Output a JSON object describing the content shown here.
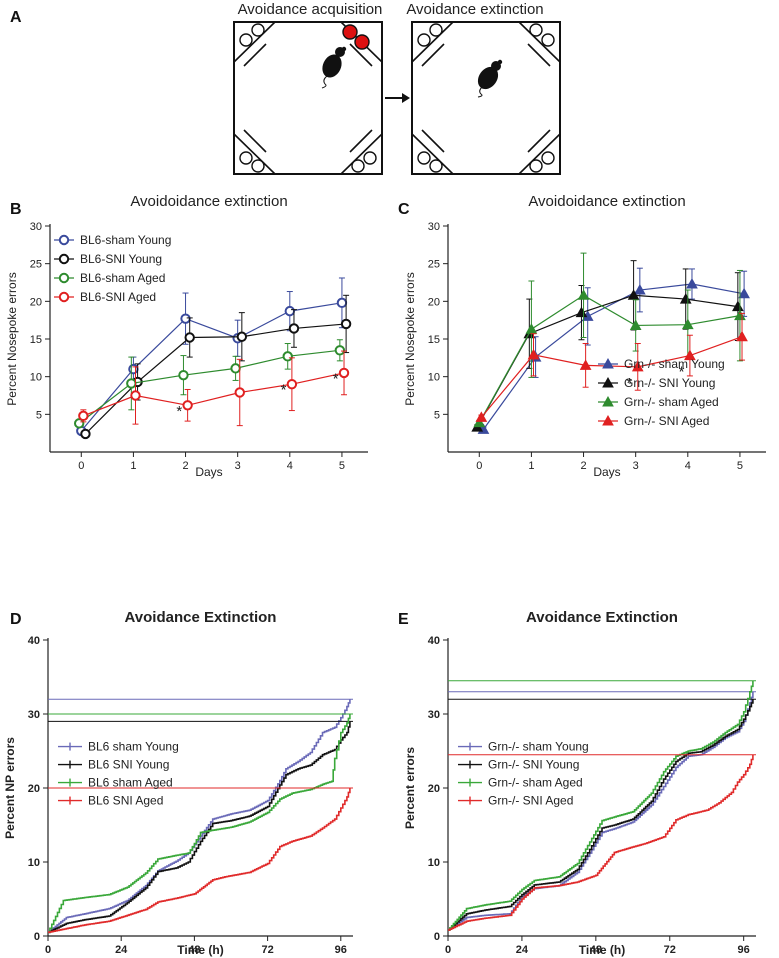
{
  "panel_labels": {
    "a": "A",
    "b": "B",
    "c": "C",
    "d": "D",
    "e": "E"
  },
  "schematic": {
    "left_title": "Avoidance acquisition",
    "right_title": "Avoidance extinction"
  },
  "colors": {
    "blue": "#3a4a9c",
    "black": "#111111",
    "green": "#2e8b2e",
    "red": "#e02020",
    "blue_step": "#6a6ab8",
    "green_step": "#3aa83a",
    "red_step": "#e02a2a"
  },
  "chart_data": [
    {
      "id": "B",
      "type": "line",
      "title": "Avoidoidance extinction",
      "xlabel": "Days",
      "ylabel": "Percent Nosepoke errors",
      "xlim": [
        -0.6,
        5.5
      ],
      "ylim": [
        0,
        30
      ],
      "xticks": [
        0,
        1,
        2,
        3,
        4,
        5
      ],
      "yticks": [
        5,
        10,
        15,
        20,
        25,
        30
      ],
      "marker": "circle",
      "legend_position": "top-left",
      "series": [
        {
          "name": "BL6-sham Young",
          "color": "#3a4a9c",
          "x": [
            0,
            1,
            2,
            3,
            4,
            5
          ],
          "y": [
            2.8,
            11.0,
            17.7,
            15.1,
            18.7,
            19.8
          ],
          "err": [
            0.3,
            1.6,
            3.4,
            2.4,
            2.6,
            3.3
          ]
        },
        {
          "name": "BL6-SNI Young",
          "color": "#111111",
          "x": [
            0.08,
            1.08,
            2.08,
            3.08,
            4.08,
            5.08
          ],
          "y": [
            2.4,
            9.3,
            15.2,
            15.3,
            16.4,
            17.0
          ],
          "err": [
            0.2,
            2.4,
            2.6,
            3.2,
            2.5,
            3.8
          ]
        },
        {
          "name": "BL6-sham Aged",
          "color": "#2e8b2e",
          "x": [
            -0.04,
            0.96,
            1.96,
            2.96,
            3.96,
            4.96
          ],
          "y": [
            3.8,
            9.1,
            10.2,
            11.1,
            12.7,
            13.5
          ],
          "err": [
            0.4,
            3.5,
            2.6,
            1.6,
            1.7,
            1.4
          ]
        },
        {
          "name": "BL6-SNI Aged",
          "color": "#e02020",
          "x": [
            0.04,
            1.04,
            2.04,
            3.04,
            4.04,
            5.04
          ],
          "y": [
            4.8,
            7.5,
            6.2,
            7.9,
            9.0,
            10.5
          ],
          "err": [
            0.8,
            3.8,
            2.1,
            4.4,
            3.5,
            2.9
          ]
        }
      ],
      "annotations": [
        {
          "text": "*",
          "x": 1.88,
          "y": 5.6
        },
        {
          "text": "*",
          "x": 3.88,
          "y": 8.4
        },
        {
          "text": "*",
          "x": 4.88,
          "y": 9.9
        }
      ]
    },
    {
      "id": "C",
      "type": "line",
      "title": "Avoidoidance extinction",
      "xlabel": "Days",
      "ylabel": "Percent Nosepoke errors",
      "xlim": [
        -0.6,
        5.5
      ],
      "ylim": [
        0,
        30
      ],
      "xticks": [
        0,
        1,
        2,
        3,
        4,
        5
      ],
      "yticks": [
        5,
        10,
        15,
        20,
        25,
        30
      ],
      "marker": "triangle",
      "legend_position": "bottom-right",
      "series": [
        {
          "name": "Grn-/- sham Young",
          "color": "#3a4a9c",
          "x": [
            0.08,
            1.08,
            2.08,
            3.08,
            4.08,
            5.08
          ],
          "y": [
            3.0,
            12.6,
            18.0,
            21.5,
            22.3,
            21.0
          ],
          "err": [
            0.3,
            2.7,
            3.8,
            2.9,
            2.0,
            3.0
          ]
        },
        {
          "name": "Grn-/- SNI Young",
          "color": "#111111",
          "x": [
            -0.04,
            0.96,
            1.96,
            2.96,
            3.96,
            4.96
          ],
          "y": [
            3.3,
            15.7,
            18.5,
            20.8,
            20.3,
            19.3
          ],
          "err": [
            0.3,
            4.6,
            3.6,
            4.6,
            4.0,
            4.5
          ]
        },
        {
          "name": "Grn-/- sham Aged",
          "color": "#2e8b2e",
          "x": [
            0,
            1,
            2,
            3,
            4,
            5
          ],
          "y": [
            3.9,
            16.3,
            20.8,
            16.8,
            16.9,
            18.1
          ],
          "err": [
            0.3,
            6.4,
            5.6,
            3.4,
            4.6,
            6.0
          ]
        },
        {
          "name": "Grn-/- SNI Aged",
          "color": "#e02020",
          "x": [
            0.04,
            1.04,
            2.04,
            3.04,
            4.04,
            5.04
          ],
          "y": [
            4.6,
            12.9,
            11.5,
            11.3,
            12.8,
            15.3
          ],
          "err": [
            0.3,
            2.8,
            2.9,
            3.1,
            2.7,
            3.1
          ]
        }
      ],
      "annotations": [
        {
          "text": "*",
          "x": 2.88,
          "y": 9.3
        },
        {
          "text": "*",
          "x": 3.88,
          "y": 10.8
        }
      ]
    },
    {
      "id": "D",
      "type": "line",
      "title": "Avoidance Extinction",
      "xlabel": "Time (h)",
      "ylabel": "Percent NP errors",
      "xlim": [
        0,
        100
      ],
      "ylim": [
        0,
        40
      ],
      "xticks": [
        0,
        24,
        48,
        72,
        96
      ],
      "yticks": [
        0,
        10,
        20,
        30,
        40
      ],
      "legend_position": "middle-left",
      "series": [
        {
          "name": "BL6 sham Young",
          "color": "#6a6ab8",
          "plateau": 32.0,
          "points": [
            [
              0,
              0.5
            ],
            [
              6,
              2.5
            ],
            [
              12,
              3.0
            ],
            [
              20,
              3.7
            ],
            [
              26,
              4.8
            ],
            [
              32,
              6.8
            ],
            [
              36,
              8.8
            ],
            [
              42,
              10.1
            ],
            [
              46,
              11.2
            ],
            [
              50,
              13.5
            ],
            [
              54,
              15.8
            ],
            [
              60,
              16.5
            ],
            [
              66,
              17.0
            ],
            [
              72,
              18.3
            ],
            [
              76,
              21.0
            ],
            [
              78,
              22.6
            ],
            [
              82,
              23.6
            ],
            [
              86,
              24.8
            ],
            [
              90,
              27.5
            ],
            [
              94,
              28.2
            ],
            [
              96,
              29.5
            ],
            [
              98,
              31.0
            ],
            [
              99,
              32.0
            ]
          ]
        },
        {
          "name": "BL6 SNI Young",
          "color": "#111111",
          "plateau": 29.0,
          "points": [
            [
              0,
              0.5
            ],
            [
              6,
              1.7
            ],
            [
              12,
              2.2
            ],
            [
              20,
              2.7
            ],
            [
              26,
              4.5
            ],
            [
              32,
              6.5
            ],
            [
              36,
              8.7
            ],
            [
              42,
              9.2
            ],
            [
              46,
              10.0
            ],
            [
              50,
              12.8
            ],
            [
              54,
              15.2
            ],
            [
              60,
              15.6
            ],
            [
              66,
              16.2
            ],
            [
              72,
              17.5
            ],
            [
              76,
              20.4
            ],
            [
              78,
              21.8
            ],
            [
              82,
              22.6
            ],
            [
              86,
              23.1
            ],
            [
              90,
              24.5
            ],
            [
              94,
              25.2
            ],
            [
              96,
              26.5
            ],
            [
              98,
              27.5
            ],
            [
              99,
              29.0
            ]
          ]
        },
        {
          "name": "BL6 sham Aged",
          "color": "#3aa83a",
          "plateau": 30.0,
          "points": [
            [
              0,
              0.5
            ],
            [
              5,
              4.8
            ],
            [
              12,
              5.2
            ],
            [
              20,
              5.6
            ],
            [
              26,
              6.6
            ],
            [
              32,
              8.5
            ],
            [
              36,
              10.4
            ],
            [
              42,
              10.9
            ],
            [
              46,
              11.2
            ],
            [
              48,
              12.5
            ],
            [
              50,
              14.0
            ],
            [
              54,
              14.3
            ],
            [
              60,
              14.7
            ],
            [
              66,
              15.4
            ],
            [
              72,
              16.7
            ],
            [
              76,
              18.5
            ],
            [
              80,
              19.3
            ],
            [
              86,
              19.8
            ],
            [
              90,
              20.5
            ],
            [
              93,
              20.9
            ],
            [
              94,
              24.0
            ],
            [
              96,
              27.5
            ],
            [
              98,
              28.8
            ],
            [
              99,
              30.0
            ]
          ]
        },
        {
          "name": "BL6 SNI Aged",
          "color": "#e02a2a",
          "plateau": 20.0,
          "points": [
            [
              0,
              0.5
            ],
            [
              6,
              1.0
            ],
            [
              12,
              1.5
            ],
            [
              20,
              2.0
            ],
            [
              26,
              2.8
            ],
            [
              32,
              3.6
            ],
            [
              36,
              4.6
            ],
            [
              42,
              5.1
            ],
            [
              48,
              5.7
            ],
            [
              54,
              7.6
            ],
            [
              58,
              8.0
            ],
            [
              66,
              8.6
            ],
            [
              72,
              9.8
            ],
            [
              76,
              12.1
            ],
            [
              80,
              12.8
            ],
            [
              86,
              13.5
            ],
            [
              90,
              14.6
            ],
            [
              94,
              15.8
            ],
            [
              96,
              17.3
            ],
            [
              98,
              18.8
            ],
            [
              99,
              20.0
            ]
          ]
        }
      ]
    },
    {
      "id": "E",
      "type": "line",
      "title": "Avoidance Extinction",
      "xlabel": "Time (h)",
      "ylabel": "Percent errors",
      "xlim": [
        0,
        100
      ],
      "ylim": [
        0,
        40
      ],
      "xticks": [
        0,
        24,
        48,
        72,
        96
      ],
      "yticks": [
        0,
        10,
        20,
        30,
        40
      ],
      "legend_position": "middle-left",
      "series": [
        {
          "name": "Grn-/- sham Young",
          "color": "#6a6ab8",
          "plateau": 33.0,
          "points": [
            [
              0,
              0.8
            ],
            [
              6,
              2.5
            ],
            [
              12,
              2.8
            ],
            [
              20,
              3.0
            ],
            [
              24,
              5.3
            ],
            [
              28,
              6.4
            ],
            [
              36,
              6.8
            ],
            [
              42,
              8.6
            ],
            [
              46,
              11.2
            ],
            [
              50,
              14.0
            ],
            [
              54,
              14.5
            ],
            [
              60,
              15.4
            ],
            [
              66,
              17.7
            ],
            [
              70,
              20.2
            ],
            [
              74,
              22.8
            ],
            [
              78,
              24.3
            ],
            [
              82,
              24.5
            ],
            [
              86,
              25.5
            ],
            [
              90,
              26.8
            ],
            [
              94,
              27.6
            ],
            [
              96,
              29.0
            ],
            [
              98,
              31.5
            ],
            [
              99,
              33.0
            ]
          ]
        },
        {
          "name": "Grn-/- SNI Young",
          "color": "#111111",
          "plateau": 32.0,
          "points": [
            [
              0,
              0.8
            ],
            [
              6,
              3.0
            ],
            [
              12,
              3.5
            ],
            [
              20,
              4.0
            ],
            [
              24,
              5.6
            ],
            [
              28,
              6.9
            ],
            [
              36,
              7.3
            ],
            [
              42,
              9.0
            ],
            [
              46,
              11.7
            ],
            [
              50,
              14.6
            ],
            [
              54,
              15.0
            ],
            [
              60,
              15.8
            ],
            [
              66,
              18.2
            ],
            [
              70,
              21.2
            ],
            [
              74,
              23.6
            ],
            [
              78,
              24.7
            ],
            [
              82,
              24.9
            ],
            [
              86,
              25.8
            ],
            [
              90,
              27.0
            ],
            [
              94,
              27.9
            ],
            [
              96,
              29.3
            ],
            [
              98,
              31.0
            ],
            [
              99,
              32.0
            ]
          ]
        },
        {
          "name": "Grn-/- sham Aged",
          "color": "#3aa83a",
          "plateau": 34.5,
          "points": [
            [
              0,
              0.8
            ],
            [
              6,
              3.7
            ],
            [
              12,
              4.2
            ],
            [
              20,
              4.7
            ],
            [
              24,
              6.3
            ],
            [
              28,
              7.5
            ],
            [
              36,
              8.0
            ],
            [
              42,
              9.8
            ],
            [
              46,
              12.7
            ],
            [
              50,
              15.6
            ],
            [
              54,
              16.1
            ],
            [
              60,
              16.8
            ],
            [
              66,
              19.3
            ],
            [
              70,
              22.2
            ],
            [
              74,
              24.3
            ],
            [
              78,
              25.0
            ],
            [
              82,
              25.3
            ],
            [
              86,
              26.2
            ],
            [
              90,
              27.5
            ],
            [
              94,
              28.6
            ],
            [
              96,
              30.3
            ],
            [
              98,
              33.0
            ],
            [
              99,
              34.5
            ]
          ]
        },
        {
          "name": "Grn-/- SNI Aged",
          "color": "#e02a2a",
          "plateau": 24.5,
          "points": [
            [
              0,
              0.8
            ],
            [
              6,
              2.0
            ],
            [
              12,
              2.4
            ],
            [
              20,
              2.8
            ],
            [
              24,
              5.0
            ],
            [
              28,
              6.5
            ],
            [
              36,
              6.8
            ],
            [
              42,
              7.3
            ],
            [
              48,
              8.2
            ],
            [
              54,
              11.3
            ],
            [
              58,
              11.8
            ],
            [
              64,
              12.5
            ],
            [
              70,
              13.4
            ],
            [
              74,
              15.7
            ],
            [
              78,
              16.4
            ],
            [
              84,
              17.0
            ],
            [
              88,
              18.0
            ],
            [
              92,
              19.4
            ],
            [
              94,
              20.8
            ],
            [
              96,
              21.8
            ],
            [
              98,
              23.2
            ],
            [
              99,
              24.5
            ]
          ]
        }
      ]
    }
  ]
}
